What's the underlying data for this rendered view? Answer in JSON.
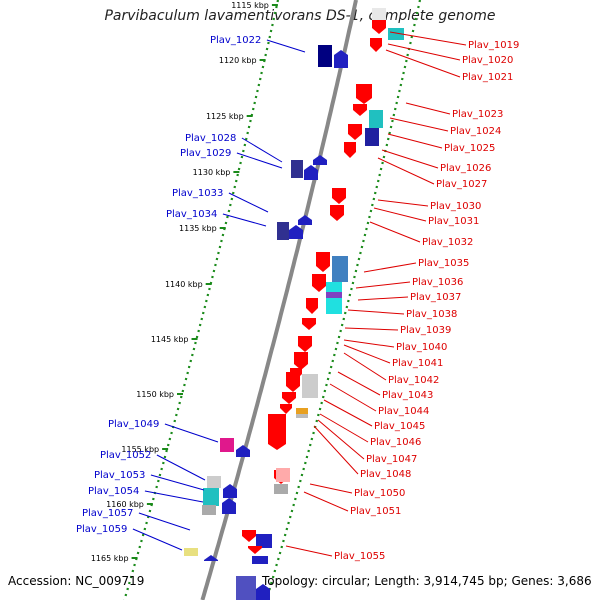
{
  "title": "Parvibaculum lavamentivorans DS-1, complete genome",
  "accession_text": "Accession: NC_009719",
  "topology_text": "Topology: circular; Length: 3,914,745 bp; Genes: 3,686",
  "colors": {
    "left_label": "#0000cc",
    "right_label": "#dd0000",
    "backbone": "#888888",
    "tick_dots": "#1a8a1a"
  },
  "kbp_ticks": [
    "1115 kbp",
    "1120 kbp",
    "1125 kbp",
    "1130 kbp",
    "1135 kbp",
    "1140 kbp",
    "1145 kbp",
    "1150 kbp",
    "1155 kbp",
    "1160 kbp",
    "1165 kbp"
  ],
  "left_genes": [
    "Plav_1022",
    "Plav_1028",
    "Plav_1029",
    "Plav_1033",
    "Plav_1034",
    "Plav_1049",
    "Plav_1052",
    "Plav_1053",
    "Plav_1054",
    "Plav_1057",
    "Plav_1059"
  ],
  "right_genes": [
    "Plav_1019",
    "Plav_1020",
    "Plav_1021",
    "Plav_1023",
    "Plav_1024",
    "Plav_1025",
    "Plav_1026",
    "Plav_1027",
    "Plav_1030",
    "Plav_1031",
    "Plav_1032",
    "Plav_1035",
    "Plav_1036",
    "Plav_1037",
    "Plav_1038",
    "Plav_1039",
    "Plav_1040",
    "Plav_1041",
    "Plav_1042",
    "Plav_1043",
    "Plav_1044",
    "Plav_1045",
    "Plav_1046",
    "Plav_1047",
    "Plav_1048",
    "Plav_1050",
    "Plav_1051",
    "Plav_1055"
  ]
}
